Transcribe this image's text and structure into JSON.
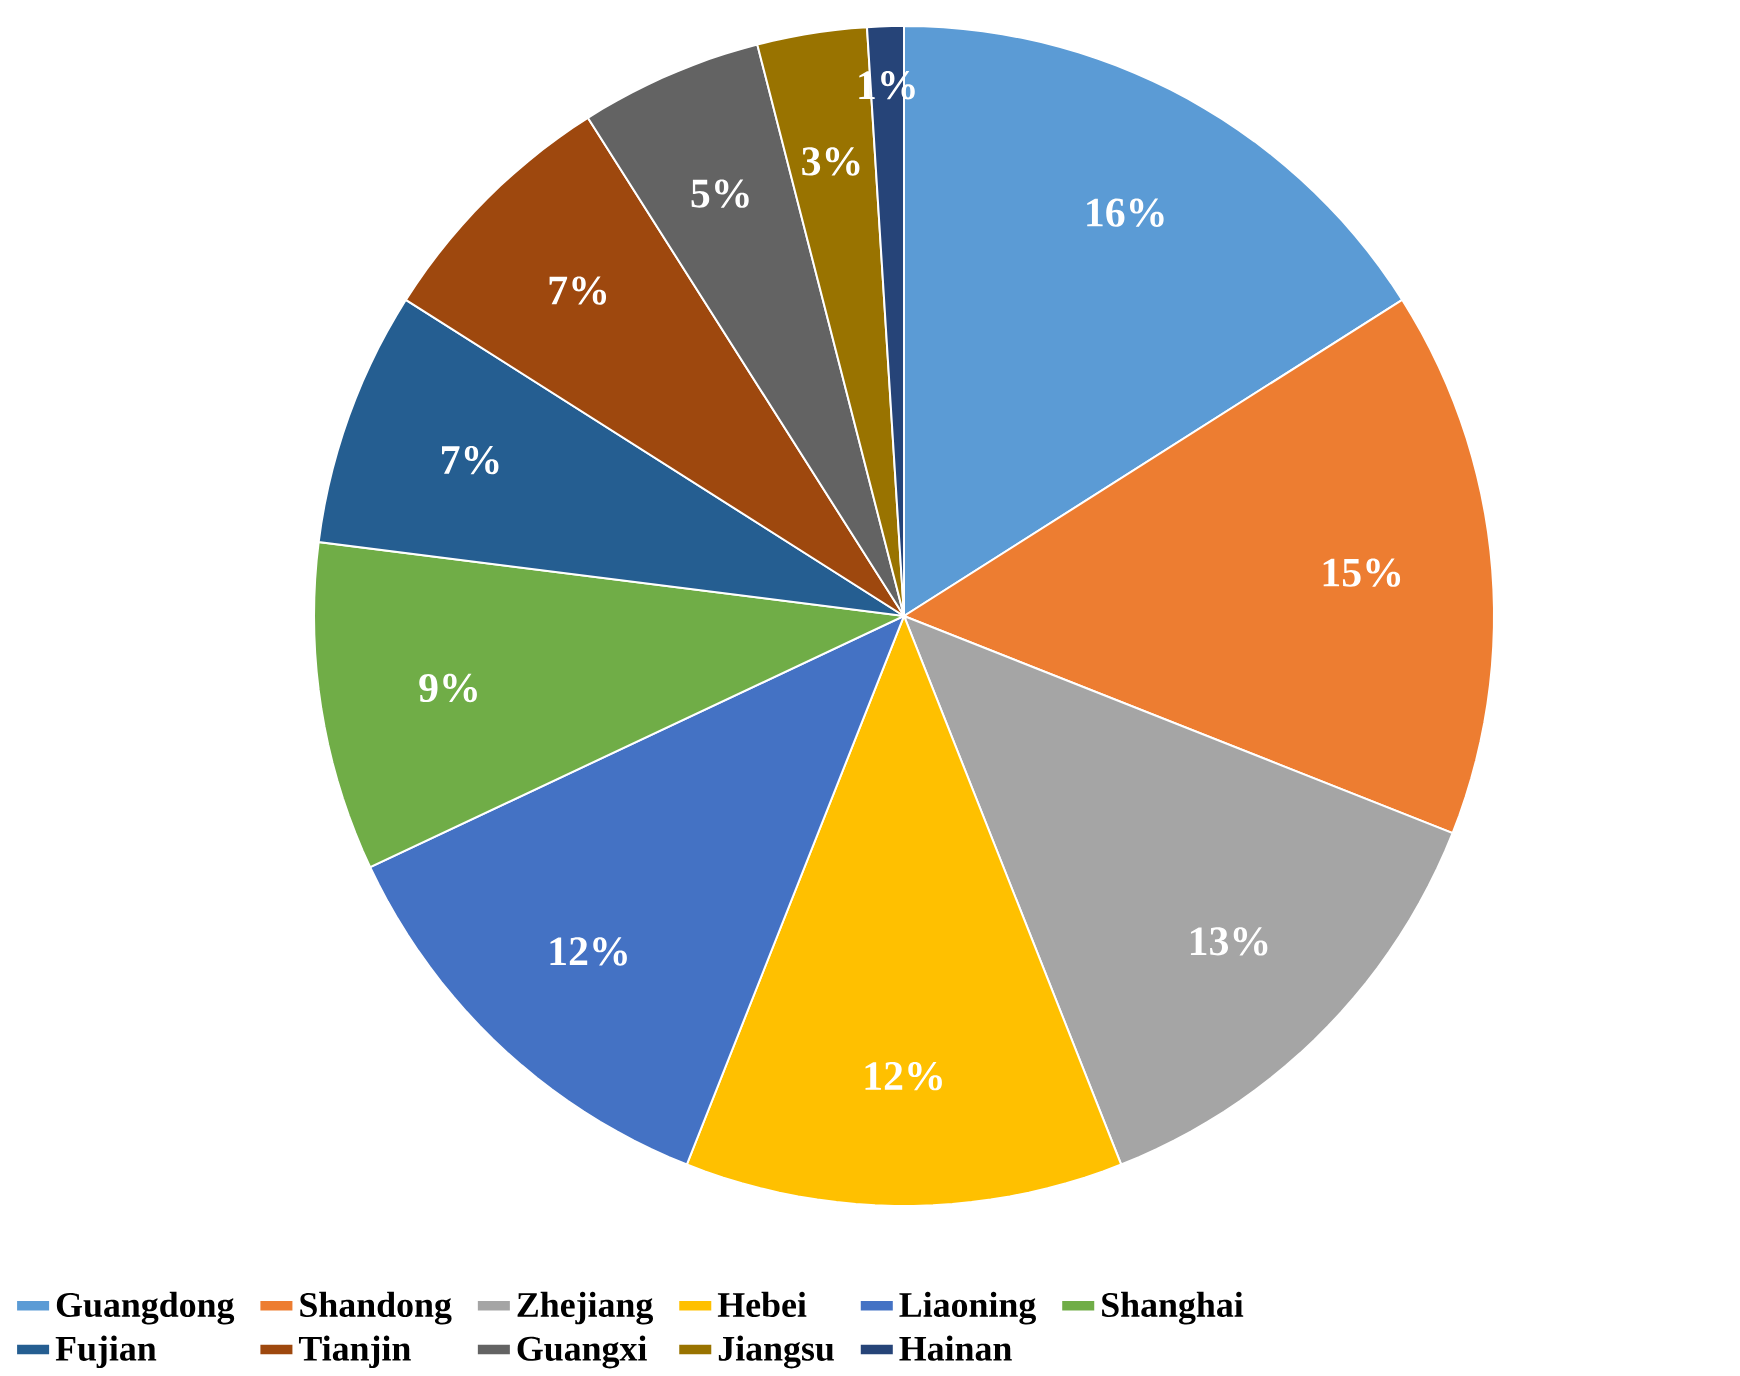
{
  "chart_data": {
    "type": "pie",
    "categories": [
      "Guangdong",
      "Shandong",
      "Zhejiang",
      "Hebei",
      "Liaoning",
      "Shanghai",
      "Fujian",
      "Tianjin",
      "Guangxi",
      "Jiangsu",
      "Hainan"
    ],
    "values": [
      16,
      15,
      13,
      12,
      12,
      9,
      7,
      7,
      5,
      3,
      1
    ],
    "value_labels": [
      "16%",
      "15%",
      "13%",
      "12%",
      "12%",
      "9%",
      "7%",
      "7%",
      "5%",
      "3%",
      "1%"
    ],
    "colors": [
      "#5b9bd5",
      "#ed7d31",
      "#a5a5a5",
      "#ffc000",
      "#4472c4",
      "#70ad47",
      "#255e91",
      "#9e480e",
      "#636363",
      "#997300",
      "#264478"
    ],
    "legend": "bottom"
  }
}
